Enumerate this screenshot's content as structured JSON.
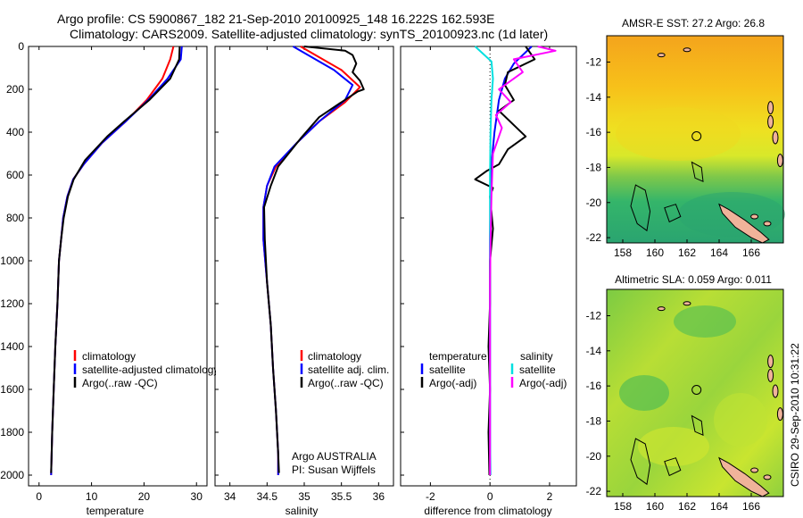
{
  "title_line1": "Argo profile: CS 5900867_182 21-Sep-2010 20100925_148 16.222S 162.593E",
  "title_line2": "Climatology: CARS2009. Satellite-adjusted climatology: synTS_20100923.nc (1d later)",
  "footer_stamp": "CSIRO 29-Sep-2010 10:31:22",
  "colors": {
    "climatology": "#ff0000",
    "satellite": "#0000ff",
    "argo": "#000000",
    "sal_satellite": "#00e0e0",
    "sal_argo": "#ff00ff"
  },
  "chart_data": [
    {
      "id": "temperature",
      "type": "line",
      "xlabel": "temperature",
      "xlim": [
        -2,
        32
      ],
      "ylim": [
        2050,
        0
      ],
      "xticks": [
        0,
        10,
        20,
        30
      ],
      "yticks": [
        0,
        200,
        400,
        600,
        800,
        1000,
        1200,
        1400,
        1600,
        1800,
        2000
      ],
      "legend": [
        "climatology",
        "satellite-adjusted climatology",
        "Argo(..raw -QC)"
      ],
      "series": [
        {
          "name": "climatology",
          "color": "#ff0000",
          "points": [
            [
              25.6,
              0
            ],
            [
              25,
              60
            ],
            [
              23.5,
              150
            ],
            [
              20.5,
              250
            ],
            [
              16.5,
              350
            ],
            [
              12,
              450
            ],
            [
              8.5,
              550
            ],
            [
              6.5,
              620
            ],
            [
              5.4,
              700
            ],
            [
              4.6,
              800
            ],
            [
              4.2,
              900
            ],
            [
              3.8,
              1000
            ],
            [
              3.5,
              1200
            ],
            [
              3.1,
              1400
            ],
            [
              2.8,
              1600
            ],
            [
              2.5,
              1800
            ],
            [
              2.3,
              2000
            ]
          ]
        },
        {
          "name": "satellite",
          "color": "#0000ff",
          "points": [
            [
              27.2,
              0
            ],
            [
              27,
              60
            ],
            [
              24.5,
              150
            ],
            [
              20.8,
              250
            ],
            [
              16.5,
              350
            ],
            [
              12,
              450
            ],
            [
              8.5,
              550
            ],
            [
              6.5,
              620
            ],
            [
              5.4,
              700
            ],
            [
              4.6,
              800
            ],
            [
              4.2,
              900
            ],
            [
              3.8,
              1000
            ],
            [
              3.5,
              1200
            ],
            [
              3.1,
              1400
            ],
            [
              2.8,
              1600
            ],
            [
              2.5,
              1800
            ],
            [
              2.3,
              2000
            ]
          ]
        },
        {
          "name": "argo",
          "color": "#000000",
          "points": [
            [
              26.8,
              0
            ],
            [
              26.7,
              60
            ],
            [
              25,
              150
            ],
            [
              21,
              250
            ],
            [
              16.2,
              350
            ],
            [
              13,
              420
            ],
            [
              8.8,
              530
            ],
            [
              6.6,
              620
            ],
            [
              5.5,
              700
            ],
            [
              4.7,
              800
            ],
            [
              4.2,
              900
            ],
            [
              3.8,
              1000
            ],
            [
              3.5,
              1200
            ],
            [
              3.1,
              1400
            ],
            [
              2.8,
              1600
            ],
            [
              2.5,
              1800
            ],
            [
              2.3,
              1990
            ]
          ]
        }
      ]
    },
    {
      "id": "salinity",
      "type": "line",
      "xlabel": "salinity",
      "xlim": [
        33.8,
        36.2
      ],
      "ylim": [
        2050,
        0
      ],
      "xticks": [
        34,
        34.5,
        35,
        35.5,
        36
      ],
      "legend": [
        "climatology",
        "satellite adj. clim.",
        "Argo(..raw -QC)"
      ],
      "annotation": [
        "Argo AUSTRALIA",
        "PI: Susan Wijffels"
      ],
      "series": [
        {
          "name": "climatology",
          "color": "#ff0000",
          "points": [
            [
              34.95,
              0
            ],
            [
              35.15,
              40
            ],
            [
              35.5,
              110
            ],
            [
              35.75,
              190
            ],
            [
              35.55,
              260
            ],
            [
              35.2,
              350
            ],
            [
              34.9,
              450
            ],
            [
              34.62,
              560
            ],
            [
              34.5,
              650
            ],
            [
              34.45,
              750
            ],
            [
              34.45,
              900
            ],
            [
              34.5,
              1100
            ],
            [
              34.55,
              1300
            ],
            [
              34.58,
              1500
            ],
            [
              34.62,
              1700
            ],
            [
              34.65,
              1900
            ],
            [
              34.65,
              2000
            ]
          ]
        },
        {
          "name": "satellite",
          "color": "#0000ff",
          "points": [
            [
              34.85,
              0
            ],
            [
              35.05,
              40
            ],
            [
              35.4,
              110
            ],
            [
              35.65,
              180
            ],
            [
              35.55,
              250
            ],
            [
              35.2,
              350
            ],
            [
              34.9,
              450
            ],
            [
              34.6,
              560
            ],
            [
              34.5,
              650
            ],
            [
              34.45,
              750
            ],
            [
              34.45,
              900
            ],
            [
              34.5,
              1100
            ],
            [
              34.55,
              1300
            ],
            [
              34.58,
              1500
            ],
            [
              34.62,
              1700
            ],
            [
              34.65,
              1900
            ],
            [
              34.65,
              2000
            ]
          ]
        },
        {
          "name": "argo",
          "color": "#000000",
          "points": [
            [
              35.0,
              0
            ],
            [
              35.55,
              20
            ],
            [
              35.65,
              40
            ],
            [
              35.7,
              80
            ],
            [
              35.65,
              120
            ],
            [
              35.75,
              160
            ],
            [
              35.8,
              200
            ],
            [
              35.72,
              210
            ],
            [
              35.5,
              260
            ],
            [
              35.2,
              330
            ],
            [
              34.95,
              430
            ],
            [
              34.65,
              560
            ],
            [
              34.55,
              650
            ],
            [
              34.46,
              750
            ],
            [
              34.47,
              900
            ],
            [
              34.5,
              1100
            ],
            [
              34.55,
              1300
            ],
            [
              34.58,
              1500
            ],
            [
              34.62,
              1700
            ],
            [
              34.65,
              1900
            ],
            [
              34.66,
              1990
            ]
          ]
        }
      ]
    },
    {
      "id": "difference",
      "type": "line",
      "xlabel": "difference from climatology",
      "xlim": [
        -3,
        2.9
      ],
      "ylim": [
        2050,
        0
      ],
      "xticks": [
        -2,
        0,
        2
      ],
      "legend_temp_header": "temperature",
      "legend_temp": [
        "satellite",
        "Argo(-adj)"
      ],
      "legend_sal_header": "salinity",
      "legend_sal": [
        "satellite",
        "Argo(-adj)"
      ],
      "series": [
        {
          "name": "temp-satellite",
          "color": "#0000ff",
          "points": [
            [
              1.4,
              0
            ],
            [
              0.8,
              80
            ],
            [
              0.5,
              150
            ],
            [
              0.3,
              250
            ],
            [
              0.15,
              400
            ],
            [
              0.05,
              550
            ],
            [
              0.02,
              700
            ],
            [
              0,
              900
            ],
            [
              0,
              1200
            ],
            [
              0,
              1600
            ],
            [
              0,
              2000
            ]
          ]
        },
        {
          "name": "temp-argo",
          "color": "#000000",
          "points": [
            [
              1.2,
              0
            ],
            [
              1.5,
              60
            ],
            [
              0.6,
              120
            ],
            [
              0.5,
              180
            ],
            [
              0.8,
              250
            ],
            [
              0.3,
              300
            ],
            [
              1.2,
              420
            ],
            [
              0.6,
              480
            ],
            [
              0.3,
              550
            ],
            [
              -0.1,
              580
            ],
            [
              -0.5,
              620
            ],
            [
              0.1,
              660
            ],
            [
              0,
              700
            ],
            [
              0.1,
              850
            ],
            [
              0,
              1000
            ],
            [
              0,
              1200
            ],
            [
              -0.05,
              1400
            ],
            [
              0,
              1600
            ],
            [
              -0.05,
              1800
            ],
            [
              -0.02,
              2000
            ]
          ]
        },
        {
          "name": "sal-satellite",
          "color": "#00e0e0",
          "points": [
            [
              -0.5,
              0
            ],
            [
              0.05,
              70
            ],
            [
              0.1,
              150
            ],
            [
              0.05,
              250
            ],
            [
              0.02,
              400
            ],
            [
              0,
              600
            ],
            [
              0,
              800
            ],
            [
              0,
              1000
            ],
            [
              0,
              1400
            ],
            [
              0,
              1800
            ],
            [
              0.02,
              2000
            ]
          ]
        },
        {
          "name": "sal-argo",
          "color": "#ff00ff",
          "points": [
            [
              1.6,
              0
            ],
            [
              2.2,
              20
            ],
            [
              0.8,
              60
            ],
            [
              1.1,
              120
            ],
            [
              0.3,
              200
            ],
            [
              0.7,
              260
            ],
            [
              0.2,
              320
            ],
            [
              0.4,
              380
            ],
            [
              0.1,
              500
            ],
            [
              0.05,
              700
            ],
            [
              0.02,
              900
            ],
            [
              0,
              1100
            ],
            [
              0,
              1400
            ],
            [
              0,
              1700
            ],
            [
              0,
              2000
            ]
          ]
        }
      ]
    },
    {
      "id": "sst-map",
      "type": "heatmap",
      "title": "AMSR-E SST: 27.2 Argo: 26.8",
      "xlim": [
        157,
        168
      ],
      "ylim": [
        -22.3,
        -10.5
      ],
      "xticks": [
        158,
        160,
        162,
        164,
        166
      ],
      "yticks": [
        -12,
        -14,
        -16,
        -18,
        -20,
        -22
      ],
      "marker": [
        162.593,
        -16.222
      ]
    },
    {
      "id": "sla-map",
      "type": "heatmap",
      "title": "Altimetric SLA: 0.059 Argo: 0.011",
      "xlim": [
        157,
        168
      ],
      "ylim": [
        -22.3,
        -10.5
      ],
      "xticks": [
        158,
        160,
        162,
        164,
        166
      ],
      "yticks": [
        -12,
        -14,
        -16,
        -18,
        -20,
        -22
      ],
      "marker": [
        162.593,
        -16.222
      ]
    }
  ]
}
